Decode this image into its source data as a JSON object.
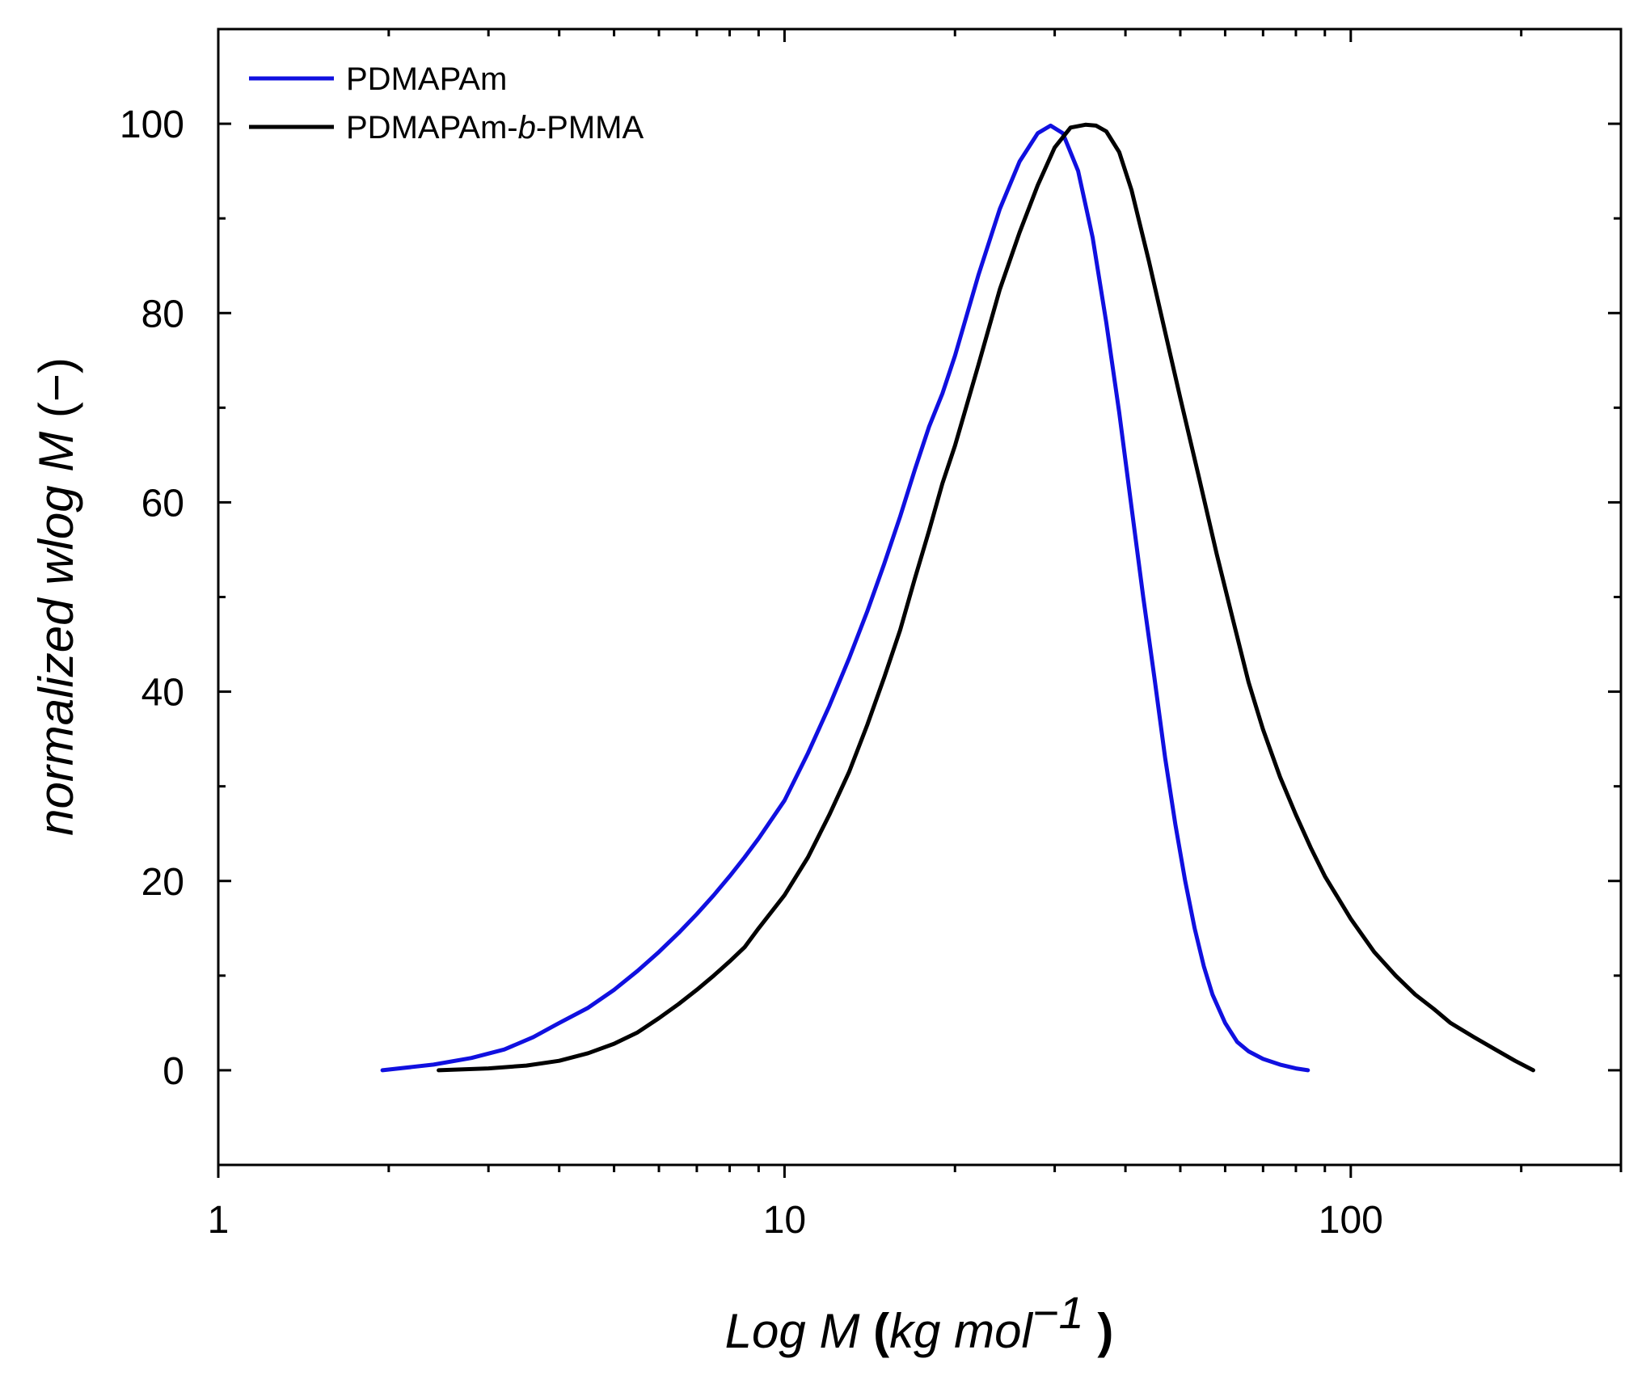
{
  "chart_data": {
    "type": "line",
    "xscale": "log",
    "xlim": [
      1,
      300
    ],
    "ylim": [
      -10,
      110
    ],
    "grid": false,
    "legend_position": "top-left",
    "x_ticks": [
      1,
      10,
      100
    ],
    "x_tick_labels": [
      "1",
      "10",
      "100"
    ],
    "y_ticks": [
      0,
      20,
      40,
      60,
      80,
      100
    ],
    "y_tick_labels": [
      "0",
      "20",
      "40",
      "60",
      "80",
      "100"
    ],
    "xlabel": {
      "italic_part": "Log M ",
      "open_paren": "(",
      "unit_part": "kg mol",
      "superscript": "−1",
      "close_paren": " )"
    },
    "ylabel": {
      "italic_part": "normalized wlog M ",
      "unit_part": "(−)"
    },
    "series": [
      {
        "name": "PDMAPAm",
        "legend_label_html": "PDMAPAm",
        "color": "#1010e0",
        "x": [
          1.95,
          2.4,
          2.8,
          3.2,
          3.6,
          4.0,
          4.5,
          5.0,
          5.5,
          6.0,
          6.5,
          7.0,
          7.5,
          8.0,
          8.5,
          9.0,
          10.0,
          11.0,
          12.0,
          13.0,
          14.0,
          15.0,
          16.0,
          17.0,
          18.0,
          19.0,
          20.0,
          22.0,
          24.0,
          26.0,
          28.0,
          29.5,
          31.0,
          33.0,
          35.0,
          37.0,
          39.0,
          41.0,
          43.0,
          45.0,
          47.0,
          49.0,
          51.0,
          53.0,
          55.0,
          57.0,
          60.0,
          63.0,
          66.0,
          70.0,
          75.0,
          80.0,
          84.0
        ],
        "y": [
          0,
          0.6,
          1.3,
          2.2,
          3.5,
          5.0,
          6.6,
          8.5,
          10.5,
          12.5,
          14.5,
          16.5,
          18.5,
          20.5,
          22.5,
          24.5,
          28.5,
          33.5,
          38.5,
          43.5,
          48.5,
          53.5,
          58.5,
          63.5,
          68.0,
          71.5,
          75.5,
          84.0,
          91.0,
          96.0,
          99.0,
          99.8,
          99.0,
          95.0,
          88.0,
          79.0,
          69.5,
          59.5,
          50.0,
          41.5,
          33.0,
          26.0,
          20.0,
          15.0,
          11.0,
          8.0,
          5.0,
          3.0,
          2.0,
          1.2,
          0.6,
          0.2,
          0
        ]
      },
      {
        "name": "PDMAPAm-b-PMMA",
        "legend_label_html": "PDMAPAm-<i>b</i>-PMMA",
        "color": "#000000",
        "x": [
          2.45,
          3.0,
          3.5,
          4.0,
          4.5,
          5.0,
          5.5,
          6.0,
          6.5,
          7.0,
          7.5,
          8.0,
          8.5,
          9.0,
          10.0,
          11.0,
          12.0,
          13.0,
          14.0,
          15.0,
          16.0,
          17.0,
          18.0,
          19.0,
          20.0,
          22.0,
          24.0,
          26.0,
          28.0,
          30.0,
          32.0,
          34.0,
          35.5,
          37.0,
          39.0,
          41.0,
          44.0,
          47.0,
          50.0,
          54.0,
          58.0,
          62.0,
          66.0,
          70.0,
          75.0,
          80.0,
          85.0,
          90.0,
          100.0,
          110.0,
          120.0,
          130.0,
          140.0,
          150.0,
          165.0,
          180.0,
          195.0,
          210.0
        ],
        "y": [
          0,
          0.2,
          0.5,
          1.0,
          1.8,
          2.8,
          4.0,
          5.5,
          7.0,
          8.5,
          10.0,
          11.5,
          13.0,
          15.0,
          18.5,
          22.5,
          27.0,
          31.5,
          36.5,
          41.5,
          46.5,
          52.0,
          57.0,
          62.0,
          66.0,
          74.5,
          82.5,
          88.5,
          93.5,
          97.5,
          99.6,
          99.9,
          99.8,
          99.2,
          97.0,
          93.0,
          85.5,
          78.0,
          71.0,
          62.5,
          54.5,
          47.5,
          41.0,
          36.0,
          31.0,
          27.0,
          23.5,
          20.5,
          16.0,
          12.5,
          10.0,
          8.0,
          6.5,
          5.0,
          3.5,
          2.2,
          1.0,
          0
        ]
      }
    ]
  }
}
